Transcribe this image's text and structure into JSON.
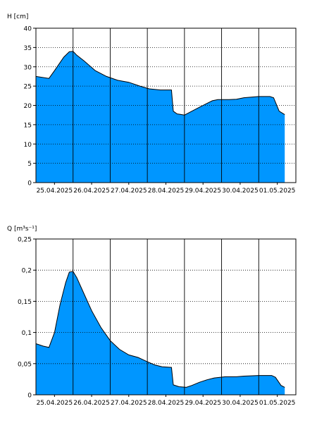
{
  "chart_data": [
    {
      "type": "area",
      "ylabel": "H [cm]",
      "ylim": [
        0,
        40
      ],
      "yticks": [
        "0",
        "5",
        "10",
        "15",
        "20",
        "25",
        "30",
        "35",
        "40"
      ],
      "xlim": [
        0,
        7.0
      ],
      "xticks": [
        "25.04.2025",
        "26.04.2025",
        "27.04.2025",
        "28.04.2025",
        "29.04.2025",
        "30.04.2025",
        "01.05.2025"
      ],
      "grid": "on",
      "fill_color": "#0096ff",
      "x": [
        0.0,
        0.35,
        0.5,
        0.75,
        0.9,
        1.0,
        1.1,
        1.3,
        1.6,
        1.9,
        2.2,
        2.5,
        2.8,
        3.05,
        3.35,
        3.65,
        3.7,
        3.8,
        4.0,
        4.2,
        4.4,
        4.6,
        4.75,
        4.9,
        5.2,
        5.4,
        5.6,
        6.0,
        6.3,
        6.4,
        6.55,
        6.7
      ],
      "y": [
        27.5,
        27.0,
        29.0,
        32.5,
        33.9,
        34.0,
        33.0,
        31.5,
        29.0,
        27.5,
        26.5,
        26.0,
        25.0,
        24.3,
        24.0,
        24.0,
        18.5,
        17.8,
        17.5,
        18.5,
        19.5,
        20.5,
        21.2,
        21.5,
        21.5,
        21.6,
        22.0,
        22.3,
        22.3,
        22.0,
        18.5,
        17.6
      ]
    },
    {
      "type": "area",
      "ylabel": "Q [m³s⁻¹]",
      "ylim": [
        0,
        0.25
      ],
      "yticks": [
        "0",
        "0,05",
        "0,1",
        "0,15",
        "0,2",
        "0,25"
      ],
      "xlim": [
        0,
        7.0
      ],
      "xticks": [
        "25.04.2025",
        "26.04.2025",
        "27.04.2025",
        "28.04.2025",
        "29.04.2025",
        "30.04.2025",
        "01.05.2025"
      ],
      "grid": "on",
      "fill_color": "#0096ff",
      "x": [
        0.0,
        0.2,
        0.35,
        0.5,
        0.65,
        0.8,
        0.9,
        1.0,
        1.1,
        1.25,
        1.5,
        1.75,
        2.0,
        2.25,
        2.5,
        2.75,
        3.0,
        3.2,
        3.4,
        3.65,
        3.7,
        3.85,
        4.05,
        4.2,
        4.4,
        4.6,
        4.8,
        5.1,
        5.4,
        5.6,
        6.0,
        6.35,
        6.45,
        6.6,
        6.7
      ],
      "y": [
        0.082,
        0.078,
        0.076,
        0.1,
        0.145,
        0.18,
        0.197,
        0.198,
        0.188,
        0.168,
        0.135,
        0.108,
        0.087,
        0.073,
        0.064,
        0.06,
        0.053,
        0.048,
        0.045,
        0.044,
        0.016,
        0.013,
        0.012,
        0.015,
        0.02,
        0.024,
        0.027,
        0.029,
        0.029,
        0.03,
        0.031,
        0.031,
        0.028,
        0.015,
        0.012
      ]
    }
  ]
}
